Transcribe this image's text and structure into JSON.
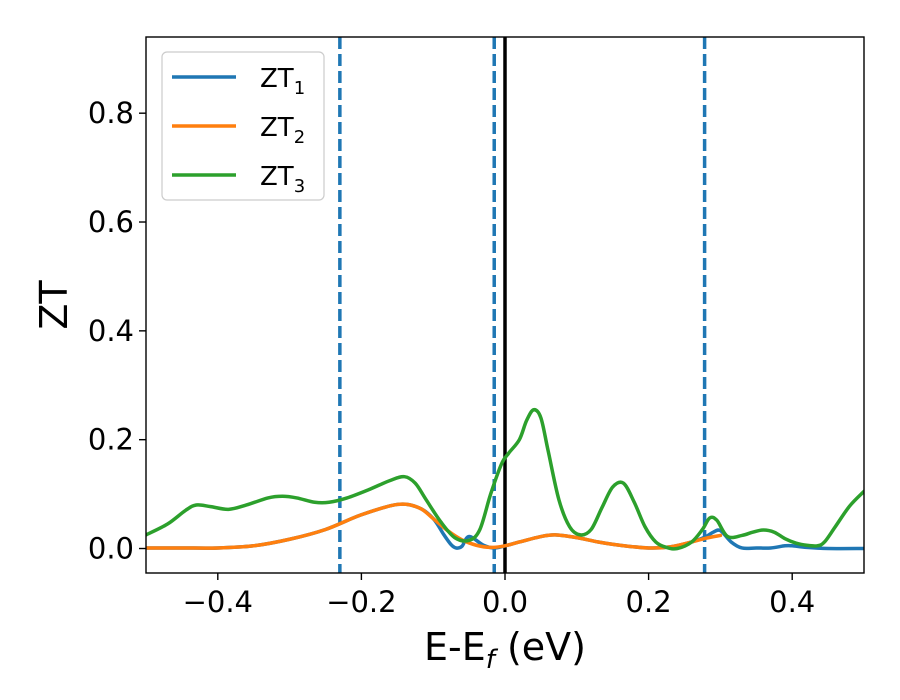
{
  "chart_data": {
    "type": "line",
    "xlabel": {
      "main": "E-E",
      "sub": "f",
      "unit": " (eV)"
    },
    "ylabel": "ZT",
    "xlim": [
      -0.5,
      0.5
    ],
    "ylim": [
      -0.045,
      0.94
    ],
    "xticks": [
      -0.4,
      -0.2,
      0.0,
      0.2,
      0.4
    ],
    "xtick_labels": [
      "−0.4",
      "−0.2",
      "0.0",
      "0.2",
      "0.4"
    ],
    "yticks": [
      0.0,
      0.2,
      0.4,
      0.6,
      0.8
    ],
    "ytick_labels": [
      "0.0",
      "0.2",
      "0.4",
      "0.6",
      "0.8"
    ],
    "legend_position": "top-left",
    "grid": false,
    "reference_lines": {
      "solid": {
        "x": 0.0,
        "color": "#000000"
      },
      "dashed": {
        "x": [
          -0.23,
          -0.015,
          0.278
        ],
        "color": "#1f77b4"
      }
    },
    "series": [
      {
        "name": {
          "main": "ZT",
          "sub": "1"
        },
        "color": "#1f77b4",
        "x": [
          -0.5,
          -0.45,
          -0.4,
          -0.35,
          -0.3,
          -0.25,
          -0.2,
          -0.15,
          -0.12,
          -0.1,
          -0.085,
          -0.075,
          -0.068,
          -0.06,
          -0.05,
          -0.03,
          -0.015,
          0.0,
          0.02,
          0.05,
          0.07,
          0.1,
          0.13,
          0.16,
          0.2,
          0.23,
          0.26,
          0.28,
          0.29,
          0.3,
          0.315,
          0.33,
          0.35,
          0.37,
          0.39,
          0.4,
          0.42,
          0.45,
          0.5
        ],
        "y": [
          0.001,
          0.001,
          0.001,
          0.005,
          0.017,
          0.035,
          0.062,
          0.081,
          0.075,
          0.055,
          0.025,
          0.007,
          0.001,
          0.004,
          0.022,
          0.006,
          0.001,
          0.005,
          0.012,
          0.022,
          0.025,
          0.02,
          0.012,
          0.006,
          0.001,
          0.003,
          0.012,
          0.022,
          0.03,
          0.033,
          0.012,
          0.001,
          0.001,
          0.001,
          0.005,
          0.005,
          0.002,
          0.0,
          0.0
        ]
      },
      {
        "name": {
          "main": "ZT",
          "sub": "2"
        },
        "color": "#ff7f0e",
        "x": [
          -0.5,
          -0.45,
          -0.4,
          -0.35,
          -0.3,
          -0.25,
          -0.2,
          -0.15,
          -0.12,
          -0.1,
          -0.08,
          -0.06,
          -0.04,
          -0.02,
          0.0,
          0.02,
          0.05,
          0.07,
          0.1,
          0.13,
          0.16,
          0.2,
          0.23,
          0.26,
          0.28,
          0.3
        ],
        "y": [
          0.001,
          0.001,
          0.001,
          0.005,
          0.017,
          0.035,
          0.062,
          0.081,
          0.075,
          0.055,
          0.033,
          0.016,
          0.006,
          0.002,
          0.005,
          0.012,
          0.022,
          0.025,
          0.02,
          0.012,
          0.006,
          0.001,
          0.003,
          0.012,
          0.019,
          0.024
        ]
      },
      {
        "name": {
          "main": "ZT",
          "sub": "3"
        },
        "color": "#2ca02c",
        "x": [
          -0.5,
          -0.47,
          -0.445,
          -0.43,
          -0.41,
          -0.385,
          -0.36,
          -0.33,
          -0.31,
          -0.29,
          -0.265,
          -0.245,
          -0.22,
          -0.19,
          -0.16,
          -0.14,
          -0.125,
          -0.11,
          -0.09,
          -0.07,
          -0.05,
          -0.035,
          -0.02,
          -0.005,
          0.005,
          0.02,
          0.03,
          0.04,
          0.05,
          0.06,
          0.075,
          0.09,
          0.105,
          0.12,
          0.135,
          0.15,
          0.165,
          0.18,
          0.195,
          0.21,
          0.225,
          0.24,
          0.26,
          0.275,
          0.285,
          0.295,
          0.31,
          0.33,
          0.345,
          0.36,
          0.375,
          0.39,
          0.405,
          0.42,
          0.435,
          0.445,
          0.46,
          0.48,
          0.5
        ],
        "y": [
          0.025,
          0.045,
          0.07,
          0.08,
          0.077,
          0.072,
          0.08,
          0.093,
          0.096,
          0.093,
          0.085,
          0.085,
          0.093,
          0.108,
          0.125,
          0.132,
          0.12,
          0.09,
          0.05,
          0.02,
          0.015,
          0.035,
          0.1,
          0.155,
          0.175,
          0.2,
          0.235,
          0.255,
          0.24,
          0.18,
          0.09,
          0.04,
          0.025,
          0.035,
          0.075,
          0.113,
          0.12,
          0.085,
          0.04,
          0.012,
          0.002,
          0.0,
          0.012,
          0.035,
          0.056,
          0.052,
          0.022,
          0.024,
          0.03,
          0.034,
          0.03,
          0.018,
          0.01,
          0.006,
          0.005,
          0.012,
          0.04,
          0.078,
          0.105
        ]
      }
    ]
  }
}
